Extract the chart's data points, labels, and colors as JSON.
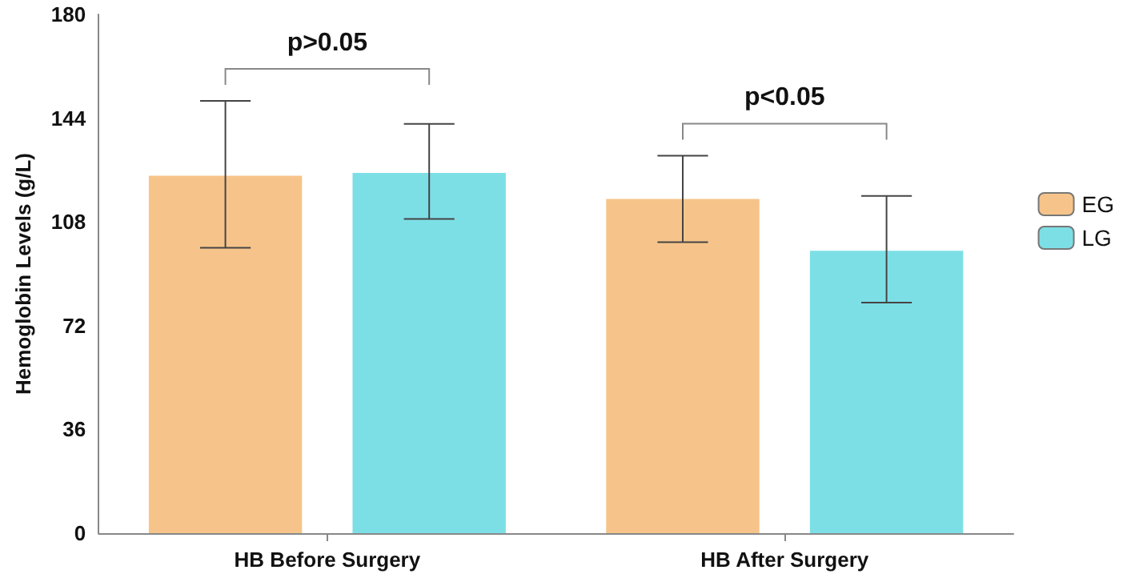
{
  "chart_data": {
    "type": "bar",
    "ylabel": "Hemoglobin Levels (g/L)",
    "categories": [
      "HB Before Surgery",
      "HB After Surgery"
    ],
    "series": [
      {
        "name": "EG",
        "color": "#f6c48a",
        "values": [
          124,
          116
        ],
        "errors": [
          [
            99,
            150
          ],
          [
            101,
            131
          ]
        ]
      },
      {
        "name": "LG",
        "color": "#7ddfe6",
        "values": [
          125,
          98
        ],
        "errors": [
          [
            109,
            142
          ],
          [
            80,
            117
          ]
        ]
      }
    ],
    "ylim": [
      0,
      180
    ],
    "yticks": [
      0,
      36,
      72,
      108,
      144,
      180
    ],
    "grid": false,
    "legend": "right",
    "annotations": [
      "p>0.05",
      "p<0.05"
    ]
  }
}
